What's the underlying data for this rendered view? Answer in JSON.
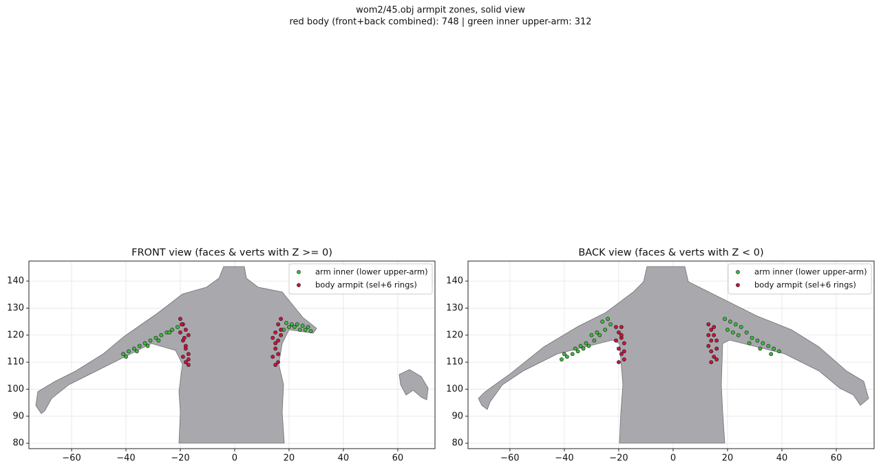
{
  "suptitle": [
    "wom2/45.obj  armpit zones, solid view",
    "red body (front+back combined): 748  |  green inner upper-arm: 312"
  ],
  "chart_data": [
    {
      "type": "scatter",
      "title": "FRONT view (faces & verts with Z >= 0)",
      "legend": "upper right",
      "grid": true,
      "xlim": [
        -75.7,
        73.7
      ],
      "ylim": [
        78,
        147.4
      ],
      "xticks": [
        {
          "value": -60,
          "label": "−60"
        },
        {
          "value": -40,
          "label": "−40"
        },
        {
          "value": -20,
          "label": "−20"
        },
        0,
        20,
        40,
        60
      ],
      "yticks": [
        80,
        90,
        100,
        110,
        120,
        130,
        140
      ],
      "series": [
        {
          "name": "arm inner (lower upper-arm)",
          "color": "#3cb83c",
          "x": [
            -41,
            -39,
            -37,
            -35,
            -33,
            -31,
            -29,
            -27,
            -25,
            -23,
            -21,
            -40,
            -36,
            -32,
            -28,
            -24,
            18,
            20,
            22,
            24,
            26,
            28,
            19,
            21,
            23,
            25,
            27
          ],
          "values": [
            113,
            114,
            115,
            116,
            117,
            118,
            119,
            120,
            121,
            122,
            123,
            112,
            114,
            116,
            118,
            121,
            122,
            123,
            123,
            122,
            122,
            121.5,
            124.5,
            124,
            124,
            123.5,
            123
          ]
        },
        {
          "name": "body armpit (sel+6 rings)",
          "color": "#c8143c",
          "x": [
            -20,
            -19,
            -18,
            -17,
            -20,
            -19,
            -18,
            -17,
            -19,
            -18,
            -17,
            -18,
            -17,
            -19.5,
            -18.5,
            17,
            16,
            15,
            14,
            17,
            16,
            15,
            14,
            16,
            15,
            16,
            17,
            15
          ],
          "values": [
            126,
            124,
            122,
            120,
            121,
            118,
            116,
            113,
            112,
            110,
            109,
            115,
            111,
            124,
            119,
            126,
            124,
            121,
            119,
            122,
            118,
            115,
            112,
            110,
            109,
            113,
            120,
            117
          ]
        }
      ]
    },
    {
      "type": "scatter",
      "title": "BACK view (faces & verts with Z < 0)",
      "legend": "upper right",
      "grid": true,
      "xlim": [
        -75.4,
        73.9
      ],
      "ylim": [
        78,
        147.4
      ],
      "xticks": [
        {
          "value": -60,
          "label": "−60"
        },
        {
          "value": -40,
          "label": "−40"
        },
        {
          "value": -20,
          "label": "−20"
        },
        0,
        20,
        40,
        60
      ],
      "yticks": [
        80,
        90,
        100,
        110,
        120,
        130,
        140
      ],
      "series": [
        {
          "name": "arm inner (lower upper-arm)",
          "color": "#3cb83c",
          "x": [
            -41,
            -39,
            -37,
            -35,
            -33,
            -31,
            -29,
            -27,
            -25,
            -23,
            -40,
            -36,
            -32,
            -28,
            -26,
            -24,
            -30,
            -34,
            19,
            21,
            23,
            25,
            27,
            29,
            31,
            33,
            35,
            37,
            39,
            20,
            22,
            24,
            28,
            32,
            36
          ],
          "values": [
            111,
            112,
            113,
            114,
            115,
            116,
            118,
            120,
            122,
            124,
            113,
            115,
            117,
            121,
            125,
            126,
            120,
            116,
            126,
            125,
            124,
            123,
            121,
            119,
            118,
            117,
            116,
            115,
            114,
            122,
            121,
            120,
            117,
            115,
            113
          ]
        },
        {
          "name": "body armpit (sel+6 rings)",
          "color": "#c8143c",
          "x": [
            -21,
            -20,
            -19,
            -18,
            -21,
            -20,
            -19,
            -18,
            -20,
            -19,
            -18,
            -19,
            13,
            14,
            15,
            16,
            13,
            14,
            15,
            16,
            14,
            15,
            16,
            13,
            14
          ],
          "values": [
            123,
            121,
            119,
            117,
            118,
            115,
            113,
            111,
            110,
            120,
            114,
            123,
            124,
            122,
            120,
            118,
            116,
            114,
            112,
            111,
            110,
            123,
            115,
            120,
            118
          ]
        }
      ]
    }
  ]
}
